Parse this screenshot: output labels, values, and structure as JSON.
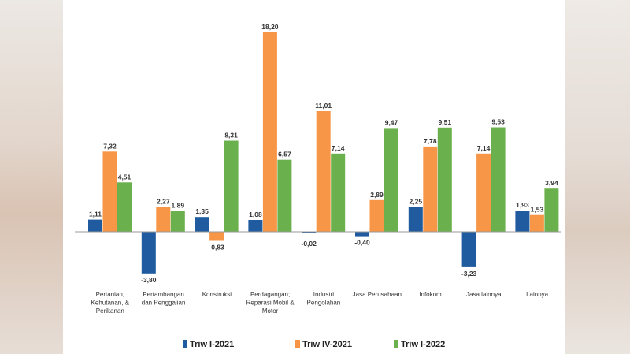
{
  "chart_data": {
    "type": "bar",
    "categories": [
      [
        "Pertanian,",
        "Kehutanan, &",
        "Perikanan"
      ],
      [
        "Pertambangan",
        "dan Penggalian"
      ],
      [
        "Konstruksi"
      ],
      [
        "Perdagangan;",
        "Reparasi Mobil &",
        "Motor"
      ],
      [
        "Industri",
        "Pengolahan"
      ],
      [
        "Jasa Perusahaan"
      ],
      [
        "Infokom"
      ],
      [
        "Jasa lainnya"
      ],
      [
        "Lainnya"
      ]
    ],
    "series": [
      {
        "name": "Triw I-2021",
        "color": "#1f5b9e",
        "values": [
          1.11,
          -3.8,
          1.35,
          1.08,
          -0.02,
          -0.4,
          2.25,
          -3.23,
          1.93
        ],
        "labels": [
          "1,11",
          "-3,80",
          "1,35",
          "1,08",
          "-0,02",
          "-0,40",
          "2,25",
          "-3,23",
          "1,93"
        ]
      },
      {
        "name": "Triw IV-2021",
        "color": "#f79646",
        "values": [
          7.32,
          2.27,
          -0.83,
          18.2,
          11.01,
          2.89,
          7.78,
          7.14,
          1.53
        ],
        "labels": [
          "7,32",
          "2,27",
          "-0,83",
          "18,20",
          "11,01",
          "2,89",
          "7,78",
          "7,14",
          "1,53"
        ]
      },
      {
        "name": "Triw I-2022",
        "color": "#6ab04c",
        "values": [
          4.51,
          1.89,
          8.31,
          6.57,
          7.14,
          9.47,
          9.51,
          9.53,
          3.94
        ],
        "labels": [
          "4,51",
          "1,89",
          "8,31",
          "6,57",
          "7,14",
          "9,47",
          "9,51",
          "9,53",
          "3,94"
        ]
      }
    ],
    "title": "",
    "xlabel": "",
    "ylabel": "",
    "ylim": [
      -4,
      19
    ],
    "legend_position": "bottom",
    "grid": false
  }
}
